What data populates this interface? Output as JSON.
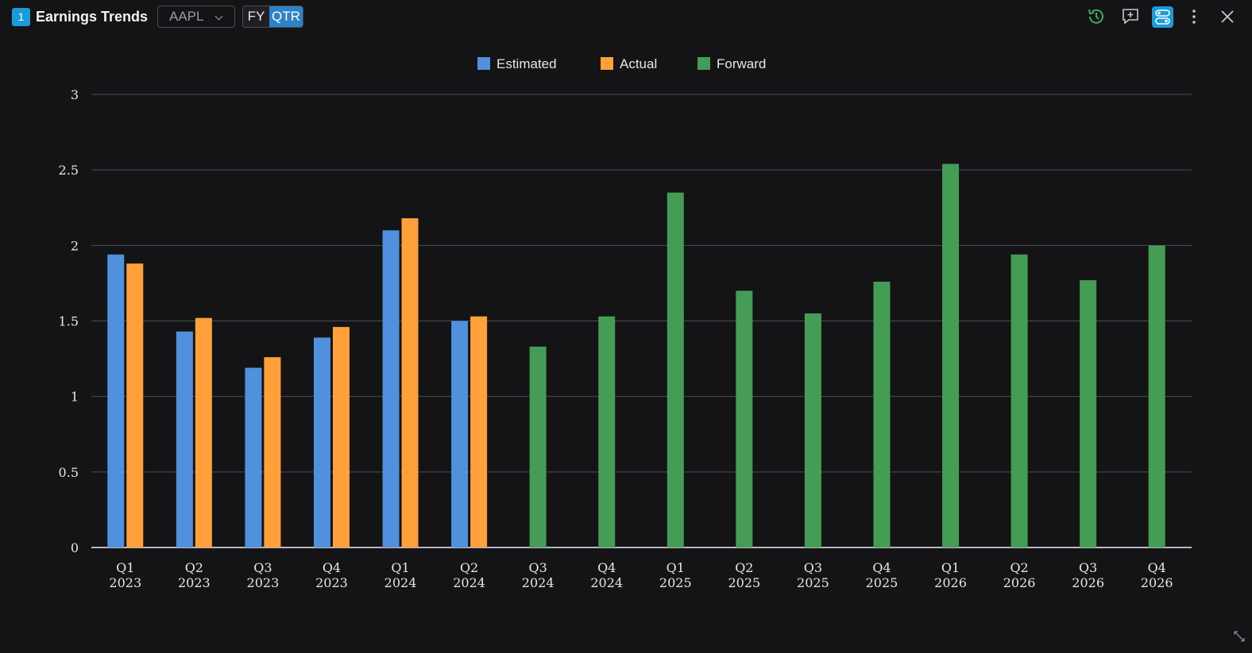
{
  "header": {
    "panel_number": "1",
    "title": "Earnings Trends",
    "ticker": "AAPL",
    "period_options": [
      "FY",
      "QTR"
    ],
    "selected_period": "QTR"
  },
  "icons": {
    "history": "history-icon",
    "comment": "comment-add-icon",
    "settings": "toggle-settings-icon",
    "more": "more-vertical-icon",
    "close": "close-icon",
    "resize": "resize-icon"
  },
  "colors": {
    "estimated": "#5090dc",
    "actual": "#ffa03a",
    "forward": "#459d55",
    "history_icon": "#3fae5e",
    "settings_icon": "#1a9bdc"
  },
  "chart_data": {
    "type": "bar",
    "legend": [
      "Estimated",
      "Actual",
      "Forward"
    ],
    "legend_position": "top-center",
    "grid": true,
    "ylim": [
      0,
      3
    ],
    "yticks": [
      "0",
      "0.5",
      "1",
      "1.5",
      "2",
      "2.5",
      "3"
    ],
    "categories": [
      [
        "Q1",
        "2023"
      ],
      [
        "Q2",
        "2023"
      ],
      [
        "Q3",
        "2023"
      ],
      [
        "Q4",
        "2023"
      ],
      [
        "Q1",
        "2024"
      ],
      [
        "Q2",
        "2024"
      ],
      [
        "Q3",
        "2024"
      ],
      [
        "Q4",
        "2024"
      ],
      [
        "Q1",
        "2025"
      ],
      [
        "Q2",
        "2025"
      ],
      [
        "Q3",
        "2025"
      ],
      [
        "Q4",
        "2025"
      ],
      [
        "Q1",
        "2026"
      ],
      [
        "Q2",
        "2026"
      ],
      [
        "Q3",
        "2026"
      ],
      [
        "Q4",
        "2026"
      ]
    ],
    "series": [
      {
        "name": "Estimated",
        "values": [
          1.94,
          1.43,
          1.19,
          1.39,
          2.1,
          1.5,
          null,
          null,
          null,
          null,
          null,
          null,
          null,
          null,
          null,
          null
        ]
      },
      {
        "name": "Actual",
        "values": [
          1.88,
          1.52,
          1.26,
          1.46,
          2.18,
          1.53,
          null,
          null,
          null,
          null,
          null,
          null,
          null,
          null,
          null,
          null
        ]
      },
      {
        "name": "Forward",
        "values": [
          null,
          null,
          null,
          null,
          null,
          null,
          1.33,
          1.53,
          2.35,
          1.7,
          1.55,
          1.76,
          2.54,
          1.94,
          1.77,
          2.0
        ]
      }
    ]
  }
}
